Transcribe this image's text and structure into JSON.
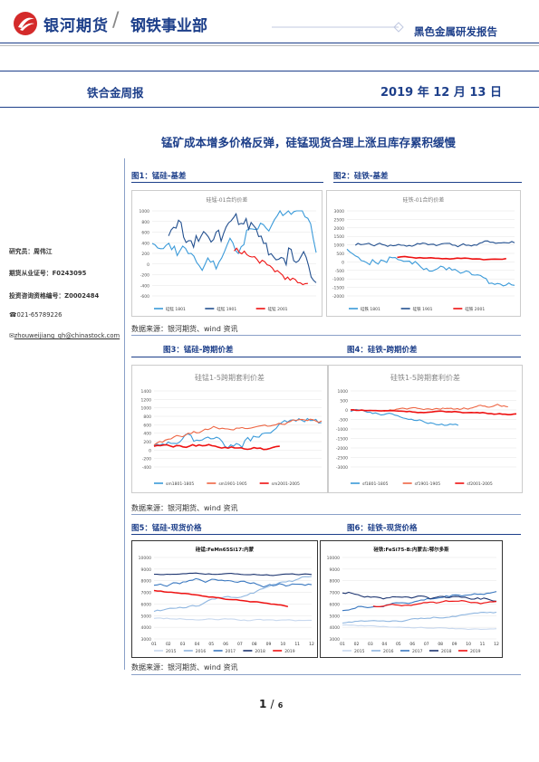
{
  "header": {
    "company": "银河期货",
    "separator": "/",
    "department": "钢铁事业部",
    "report_type": "黑色金属研发报告",
    "weekly_name": "铁合金周报",
    "date": "2019 年 12 月 13 日"
  },
  "title": "锰矿成本增多价格反弹，硅锰现货合理上涨且库存累积缓慢",
  "author": {
    "researcher": "研究员：周伟江",
    "license": "期货从业证号：F0243095",
    "consult": "投资咨询资格编号：Z0002484",
    "phone": "021-65789226",
    "email": "zhouweijiang_qh@chinastock.com",
    "phone_icon": "phone-icon",
    "email_icon": "envelope-icon"
  },
  "figures": {
    "fig1": "图1：锰硅-基差",
    "fig2": "图2：硅铁-基差",
    "fig3": "图3：锰硅-跨期价差",
    "fig4": "图4：硅铁-跨期价差",
    "fig5": "图5：锰硅-现货价格",
    "fig6": "图6：硅铁-现货价格",
    "source1": "数据来源：银河期货、wind 资讯",
    "source2": "数据来源：银河期货、wind 资讯",
    "source3": "数据来源：银河期货、wind 资讯"
  },
  "page": {
    "current": "1",
    "sep": "/",
    "total": "6"
  },
  "chart_data": [
    {
      "type": "line",
      "title": "硅锰-01合约价差",
      "ylim": [
        -600,
        1000
      ],
      "yticks": [
        "1000",
        "800",
        "600",
        "400",
        "200",
        "0",
        "-200",
        "-400",
        "-600"
      ],
      "series": [
        {
          "name": "硅锰 1801",
          "color": "#3a9ad9"
        },
        {
          "name": "硅锰 1901",
          "color": "#23508f"
        },
        {
          "name": "硅锰 2001",
          "color": "#ee1111"
        }
      ]
    },
    {
      "type": "line",
      "title": "硅铁-01合约价差",
      "ylim": [
        -2000,
        3000
      ],
      "yticks": [
        "3000",
        "2500",
        "2000",
        "1500",
        "1000",
        "500",
        "0",
        "-500",
        "-1000",
        "-1500",
        "-2000"
      ],
      "series": [
        {
          "name": "硅铁 1801",
          "color": "#3a9ad9"
        },
        {
          "name": "硅铁 1901",
          "color": "#23508f"
        },
        {
          "name": "硅铁 2001",
          "color": "#ee1111"
        }
      ]
    },
    {
      "type": "line",
      "title": "硅锰1-5跨期套利价差",
      "ylim": [
        -400,
        1400
      ],
      "yticks": [
        "1400",
        "1200",
        "1000",
        "800",
        "600",
        "400",
        "200",
        "0",
        "-200",
        "-400"
      ],
      "series": [
        {
          "name": "sm1801-1805",
          "color": "#3a9ad9"
        },
        {
          "name": "sm1901-1905",
          "color": "#ee6644"
        },
        {
          "name": "sm2001-2005",
          "color": "#ee1111"
        }
      ]
    },
    {
      "type": "line",
      "title": "硅铁1-5跨期套利价差",
      "ylim": [
        -3000,
        1000
      ],
      "yticks": [
        "1000",
        "500",
        "0",
        "-500",
        "-1000",
        "-1500",
        "-2000",
        "-2500",
        "-3000"
      ],
      "series": [
        {
          "name": "sf1801-1805",
          "color": "#3a9ad9"
        },
        {
          "name": "sf1901-1905",
          "color": "#ee6644"
        },
        {
          "name": "sf2001-2005",
          "color": "#ee1111"
        }
      ]
    },
    {
      "type": "line",
      "title": "硅锰:FeMn65Si17:内蒙",
      "ylim": [
        3000,
        10000
      ],
      "yticks": [
        "10000",
        "9000",
        "8000",
        "7000",
        "6000",
        "5000",
        "4000",
        "3000"
      ],
      "x": [
        "01",
        "02",
        "03",
        "04",
        "05",
        "06",
        "07",
        "08",
        "09",
        "10",
        "11",
        "12"
      ],
      "series": [
        {
          "name": "2015",
          "color": "#c8d8ee"
        },
        {
          "name": "2016",
          "color": "#8fb6e0"
        },
        {
          "name": "2017",
          "color": "#3a78c0"
        },
        {
          "name": "2018",
          "color": "#1d3570"
        },
        {
          "name": "2019",
          "color": "#ee1111"
        }
      ]
    },
    {
      "type": "line",
      "title": "硅铁:FeSi75-B:内蒙古:鄂尔多斯",
      "ylim": [
        3000,
        10000
      ],
      "yticks": [
        "10000",
        "9000",
        "8000",
        "7000",
        "6000",
        "5000",
        "4000",
        "3000"
      ],
      "x": [
        "01",
        "02",
        "03",
        "04",
        "05",
        "06",
        "07",
        "08",
        "09",
        "10",
        "11",
        "12"
      ],
      "series": [
        {
          "name": "2015",
          "color": "#c8d8ee"
        },
        {
          "name": "2016",
          "color": "#8fb6e0"
        },
        {
          "name": "2017",
          "color": "#3a78c0"
        },
        {
          "name": "2018",
          "color": "#1d3570"
        },
        {
          "name": "2019",
          "color": "#ee1111"
        }
      ]
    }
  ]
}
